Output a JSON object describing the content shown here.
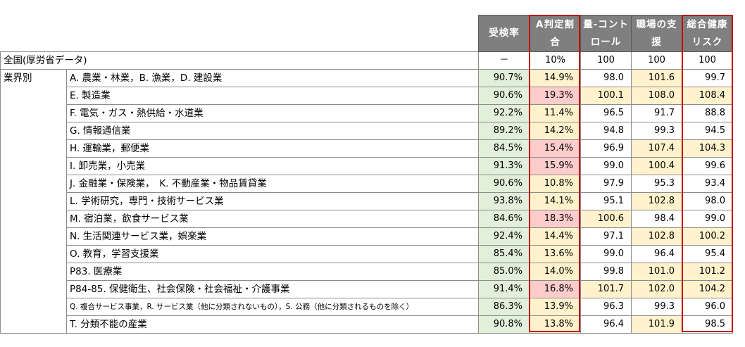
{
  "colors": {
    "header_bg": "#7f7f7f",
    "highlight_red_border": "#c00000",
    "green": "#e2efda",
    "yellow": "#fff2cc",
    "pink": "#ffcccc"
  },
  "headers": {
    "exam_rate": "受検率",
    "a_rate": "A判定割合",
    "qty_control": "量-コントロール",
    "support": "職場の支援",
    "total_risk": "総合健康リスク"
  },
  "national": {
    "label": "全国(厚労省データ)",
    "exam_rate": "－",
    "a_rate": "10%",
    "qty_control": "100",
    "support": "100",
    "total_risk": "100"
  },
  "group_label": "業界別",
  "rows": [
    {
      "label": "A. 農業・林業，B. 漁業，D. 建設業",
      "exam_rate": "90.7%",
      "a_rate": "14.9%",
      "qty_control": "98.0",
      "support": "101.6",
      "total_risk": "99.7",
      "c_a": "yellow",
      "c_q": "white",
      "c_s": "yellow",
      "c_t": "white",
      "small": false
    },
    {
      "label": "E. 製造業",
      "exam_rate": "90.6%",
      "a_rate": "19.3%",
      "qty_control": "100.1",
      "support": "108.0",
      "total_risk": "108.4",
      "c_a": "pink",
      "c_q": "yellow",
      "c_s": "yellow",
      "c_t": "yellow",
      "small": false
    },
    {
      "label": "F. 電気・ガス・熱供給・水道業",
      "exam_rate": "92.2%",
      "a_rate": "11.4%",
      "qty_control": "96.5",
      "support": "91.7",
      "total_risk": "88.8",
      "c_a": "yellow",
      "c_q": "white",
      "c_s": "white",
      "c_t": "white",
      "small": false
    },
    {
      "label": "G. 情報通信業",
      "exam_rate": "89.2%",
      "a_rate": "14.2%",
      "qty_control": "94.8",
      "support": "99.3",
      "total_risk": "94.5",
      "c_a": "yellow",
      "c_q": "white",
      "c_s": "white",
      "c_t": "white",
      "small": false
    },
    {
      "label": "H. 運輸業，郵便業",
      "exam_rate": "84.5%",
      "a_rate": "15.4%",
      "qty_control": "96.9",
      "support": "107.4",
      "total_risk": "104.3",
      "c_a": "pink",
      "c_q": "white",
      "c_s": "yellow",
      "c_t": "yellow",
      "small": false
    },
    {
      "label": "I. 卸売業，小売業",
      "exam_rate": "91.3%",
      "a_rate": "15.9%",
      "qty_control": "99.0",
      "support": "100.4",
      "total_risk": "99.6",
      "c_a": "pink",
      "c_q": "white",
      "c_s": "yellow",
      "c_t": "white",
      "small": false
    },
    {
      "label": "J. 金融業・保険業，　K. 不動産業・物品賃貸業",
      "exam_rate": "90.6%",
      "a_rate": "10.8%",
      "qty_control": "97.9",
      "support": "95.3",
      "total_risk": "93.4",
      "c_a": "yellow",
      "c_q": "white",
      "c_s": "white",
      "c_t": "white",
      "small": false
    },
    {
      "label": "L. 学術研究，専門・技術サービス業",
      "exam_rate": "93.8%",
      "a_rate": "14.1%",
      "qty_control": "95.1",
      "support": "102.8",
      "total_risk": "98.0",
      "c_a": "yellow",
      "c_q": "white",
      "c_s": "yellow",
      "c_t": "white",
      "small": false
    },
    {
      "label": "M. 宿泊業，飲食サービス業",
      "exam_rate": "84.6%",
      "a_rate": "18.3%",
      "qty_control": "100.6",
      "support": "98.4",
      "total_risk": "99.0",
      "c_a": "pink",
      "c_q": "yellow",
      "c_s": "white",
      "c_t": "white",
      "small": false
    },
    {
      "label": "N. 生活関連サービス業，娯楽業",
      "exam_rate": "92.4%",
      "a_rate": "14.4%",
      "qty_control": "97.1",
      "support": "102.8",
      "total_risk": "100.2",
      "c_a": "yellow",
      "c_q": "white",
      "c_s": "yellow",
      "c_t": "yellow",
      "small": false
    },
    {
      "label": "O. 教育，学習支援業",
      "exam_rate": "85.4%",
      "a_rate": "13.6%",
      "qty_control": "99.0",
      "support": "96.4",
      "total_risk": "95.4",
      "c_a": "yellow",
      "c_q": "white",
      "c_s": "white",
      "c_t": "white",
      "small": false
    },
    {
      "label": "P83. 医療業",
      "exam_rate": "85.0%",
      "a_rate": "14.0%",
      "qty_control": "99.8",
      "support": "101.0",
      "total_risk": "101.2",
      "c_a": "yellow",
      "c_q": "white",
      "c_s": "yellow",
      "c_t": "yellow",
      "small": false
    },
    {
      "label": "P84-85. 保健衛生、社会保険・社会福祉・介護事業",
      "exam_rate": "91.4%",
      "a_rate": "16.8%",
      "qty_control": "101.7",
      "support": "102.0",
      "total_risk": "104.2",
      "c_a": "pink",
      "c_q": "yellow",
      "c_s": "yellow",
      "c_t": "yellow",
      "small": false
    },
    {
      "label": "Q. 複合サービス事業，R. サービス業（他に分類されないもの），S. 公務（他に分類されるものを除く）",
      "exam_rate": "86.3%",
      "a_rate": "13.9%",
      "qty_control": "96.3",
      "support": "99.3",
      "total_risk": "96.0",
      "c_a": "yellow",
      "c_q": "white",
      "c_s": "white",
      "c_t": "white",
      "small": true
    },
    {
      "label": "T. 分類不能の産業",
      "exam_rate": "90.8%",
      "a_rate": "13.8%",
      "qty_control": "96.4",
      "support": "101.9",
      "total_risk": "98.5",
      "c_a": "yellow",
      "c_q": "white",
      "c_s": "yellow",
      "c_t": "white",
      "small": false
    }
  ]
}
